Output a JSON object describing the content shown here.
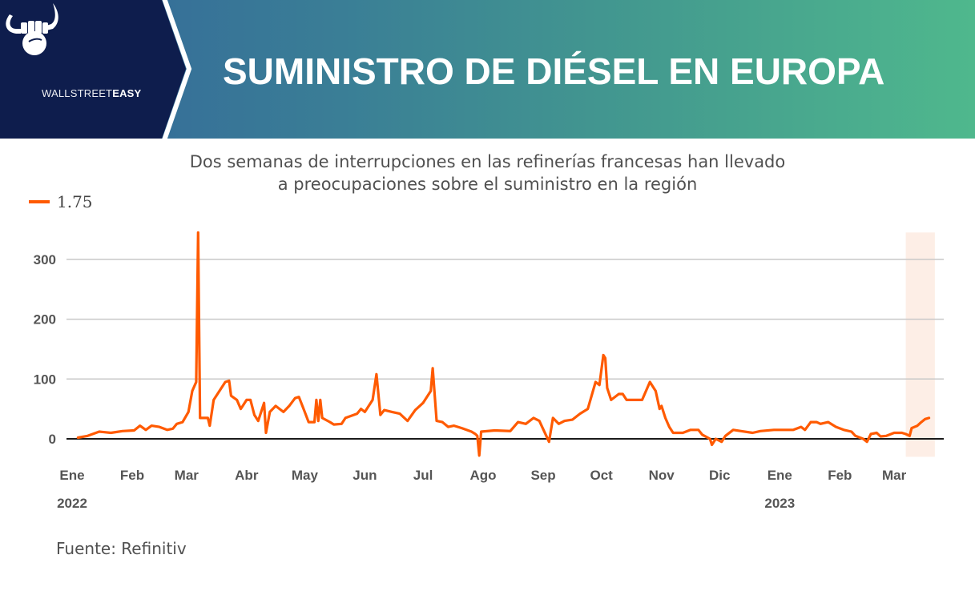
{
  "header": {
    "brand_light": "WALLSTREET",
    "brand_bold": "EASY",
    "title": "SUMINISTRO DE DIÉSEL EN EUROPA",
    "logo_icon": "bull-horns-fist-icon"
  },
  "subtitle_lines": [
    "Dos semanas de interrupciones en las refinerías francesas han llevado",
    "a preocupaciones sobre el suministro en la región"
  ],
  "source": "Fuente: Refinitiv",
  "colors": {
    "series": "#ff5a00",
    "highlight": "#fdeee6",
    "header_dark": "#0e1d4d",
    "gridline": "#c8c8c8",
    "zero_line": "#1a1a1a"
  },
  "chart_data": {
    "type": "line",
    "title": "SUMINISTRO DE DIÉSEL EN EUROPA",
    "subtitle": "Dos semanas de interrupciones en las refinerías francesas han llevado a preocupaciones sobre el suministro en la región",
    "xlabel": "",
    "ylabel": "",
    "ylim": [
      -30,
      345
    ],
    "yticks": [
      0,
      100,
      200,
      300
    ],
    "grid": true,
    "legend": {
      "position": "top-left",
      "entries": [
        "1.75"
      ]
    },
    "x_start": "2022-01-01",
    "x_end": "2023-03-24",
    "xticks": [
      {
        "date": "2022-01-01",
        "label": "Ene",
        "year": "2022"
      },
      {
        "date": "2022-02-01",
        "label": "Feb"
      },
      {
        "date": "2022-03-01",
        "label": "Mar"
      },
      {
        "date": "2022-04-01",
        "label": "Abr"
      },
      {
        "date": "2022-05-01",
        "label": "May"
      },
      {
        "date": "2022-06-01",
        "label": "Jun"
      },
      {
        "date": "2022-07-01",
        "label": "Jul"
      },
      {
        "date": "2022-08-01",
        "label": "Ago"
      },
      {
        "date": "2022-09-01",
        "label": "Sep"
      },
      {
        "date": "2022-10-01",
        "label": "Oct"
      },
      {
        "date": "2022-11-01",
        "label": "Nov"
      },
      {
        "date": "2022-12-01",
        "label": "Dic"
      },
      {
        "date": "2023-01-01",
        "label": "Ene",
        "year": "2023"
      },
      {
        "date": "2023-02-01",
        "label": "Feb"
      },
      {
        "date": "2023-03-01",
        "label": "Mar"
      }
    ],
    "highlight": {
      "from": "2023-03-07",
      "to": "2023-03-22"
    },
    "series": [
      {
        "name": "1.75",
        "points": [
          [
            "2022-01-04",
            2
          ],
          [
            "2022-01-09",
            5
          ],
          [
            "2022-01-15",
            12
          ],
          [
            "2022-01-21",
            10
          ],
          [
            "2022-01-27",
            13
          ],
          [
            "2022-02-02",
            14
          ],
          [
            "2022-02-05",
            22
          ],
          [
            "2022-02-08",
            15
          ],
          [
            "2022-02-11",
            22
          ],
          [
            "2022-02-15",
            20
          ],
          [
            "2022-02-19",
            15
          ],
          [
            "2022-02-22",
            17
          ],
          [
            "2022-02-24",
            25
          ],
          [
            "2022-02-27",
            28
          ],
          [
            "2022-03-02",
            45
          ],
          [
            "2022-03-04",
            80
          ],
          [
            "2022-03-06",
            95
          ],
          [
            "2022-03-07",
            345
          ],
          [
            "2022-03-08",
            35
          ],
          [
            "2022-03-12",
            35
          ],
          [
            "2022-03-13",
            22
          ],
          [
            "2022-03-15",
            65
          ],
          [
            "2022-03-21",
            95
          ],
          [
            "2022-03-23",
            97
          ],
          [
            "2022-03-24",
            72
          ],
          [
            "2022-03-27",
            65
          ],
          [
            "2022-03-29",
            50
          ],
          [
            "2022-03-30",
            55
          ],
          [
            "2022-04-01",
            65
          ],
          [
            "2022-04-03",
            65
          ],
          [
            "2022-04-05",
            40
          ],
          [
            "2022-04-07",
            30
          ],
          [
            "2022-04-10",
            60
          ],
          [
            "2022-04-11",
            10
          ],
          [
            "2022-04-13",
            45
          ],
          [
            "2022-04-16",
            55
          ],
          [
            "2022-04-18",
            50
          ],
          [
            "2022-04-20",
            45
          ],
          [
            "2022-04-23",
            55
          ],
          [
            "2022-04-26",
            68
          ],
          [
            "2022-04-28",
            70
          ],
          [
            "2022-05-01",
            45
          ],
          [
            "2022-05-03",
            28
          ],
          [
            "2022-05-06",
            28
          ],
          [
            "2022-05-07",
            65
          ],
          [
            "2022-05-08",
            30
          ],
          [
            "2022-05-09",
            65
          ],
          [
            "2022-05-10",
            35
          ],
          [
            "2022-05-14",
            28
          ],
          [
            "2022-05-16",
            24
          ],
          [
            "2022-05-20",
            25
          ],
          [
            "2022-05-22",
            35
          ],
          [
            "2022-05-28",
            42
          ],
          [
            "2022-05-30",
            50
          ],
          [
            "2022-06-01",
            45
          ],
          [
            "2022-06-05",
            65
          ],
          [
            "2022-06-07",
            108
          ],
          [
            "2022-06-09",
            40
          ],
          [
            "2022-06-11",
            48
          ],
          [
            "2022-06-15",
            45
          ],
          [
            "2022-06-19",
            42
          ],
          [
            "2022-06-23",
            30
          ],
          [
            "2022-06-27",
            48
          ],
          [
            "2022-07-01",
            60
          ],
          [
            "2022-07-05",
            80
          ],
          [
            "2022-07-06",
            118
          ],
          [
            "2022-07-08",
            30
          ],
          [
            "2022-07-11",
            28
          ],
          [
            "2022-07-14",
            20
          ],
          [
            "2022-07-17",
            22
          ],
          [
            "2022-07-21",
            18
          ],
          [
            "2022-07-26",
            12
          ],
          [
            "2022-07-28",
            8
          ],
          [
            "2022-07-29",
            5
          ],
          [
            "2022-07-30",
            -28
          ],
          [
            "2022-07-31",
            12
          ],
          [
            "2022-08-07",
            14
          ],
          [
            "2022-08-15",
            13
          ],
          [
            "2022-08-19",
            28
          ],
          [
            "2022-08-23",
            25
          ],
          [
            "2022-08-27",
            35
          ],
          [
            "2022-08-30",
            30
          ],
          [
            "2022-09-04",
            -5
          ],
          [
            "2022-09-06",
            35
          ],
          [
            "2022-09-09",
            25
          ],
          [
            "2022-09-12",
            30
          ],
          [
            "2022-09-16",
            32
          ],
          [
            "2022-09-20",
            42
          ],
          [
            "2022-09-24",
            50
          ],
          [
            "2022-09-28",
            95
          ],
          [
            "2022-09-30",
            90
          ],
          [
            "2022-10-02",
            140
          ],
          [
            "2022-10-03",
            135
          ],
          [
            "2022-10-04",
            85
          ],
          [
            "2022-10-06",
            65
          ],
          [
            "2022-10-10",
            75
          ],
          [
            "2022-10-12",
            75
          ],
          [
            "2022-10-14",
            65
          ],
          [
            "2022-10-22",
            65
          ],
          [
            "2022-10-26",
            95
          ],
          [
            "2022-10-29",
            80
          ],
          [
            "2022-10-31",
            50
          ],
          [
            "2022-11-01",
            55
          ],
          [
            "2022-11-03",
            35
          ],
          [
            "2022-11-05",
            20
          ],
          [
            "2022-11-07",
            10
          ],
          [
            "2022-11-12",
            10
          ],
          [
            "2022-11-16",
            15
          ],
          [
            "2022-11-20",
            15
          ],
          [
            "2022-11-22",
            7
          ],
          [
            "2022-11-26",
            0
          ],
          [
            "2022-11-27",
            -10
          ],
          [
            "2022-11-29",
            0
          ],
          [
            "2022-12-02",
            -5
          ],
          [
            "2022-12-04",
            5
          ],
          [
            "2022-12-08",
            15
          ],
          [
            "2022-12-12",
            13
          ],
          [
            "2022-12-18",
            10
          ],
          [
            "2022-12-22",
            13
          ],
          [
            "2022-12-29",
            15
          ],
          [
            "2023-01-08",
            15
          ],
          [
            "2023-01-12",
            20
          ],
          [
            "2023-01-14",
            15
          ],
          [
            "2023-01-17",
            28
          ],
          [
            "2023-01-20",
            28
          ],
          [
            "2023-01-22",
            25
          ],
          [
            "2023-01-26",
            28
          ],
          [
            "2023-01-30",
            20
          ],
          [
            "2023-02-03",
            15
          ],
          [
            "2023-02-07",
            12
          ],
          [
            "2023-02-09",
            5
          ],
          [
            "2023-02-13",
            0
          ],
          [
            "2023-02-15",
            -5
          ],
          [
            "2023-02-17",
            8
          ],
          [
            "2023-02-20",
            10
          ],
          [
            "2023-02-22",
            4
          ],
          [
            "2023-02-25",
            5
          ],
          [
            "2023-03-01",
            10
          ],
          [
            "2023-03-05",
            10
          ],
          [
            "2023-03-07",
            8
          ],
          [
            "2023-03-09",
            5
          ],
          [
            "2023-03-10",
            18
          ],
          [
            "2023-03-13",
            22
          ],
          [
            "2023-03-15",
            28
          ],
          [
            "2023-03-17",
            33
          ],
          [
            "2023-03-19",
            35
          ]
        ]
      }
    ]
  }
}
